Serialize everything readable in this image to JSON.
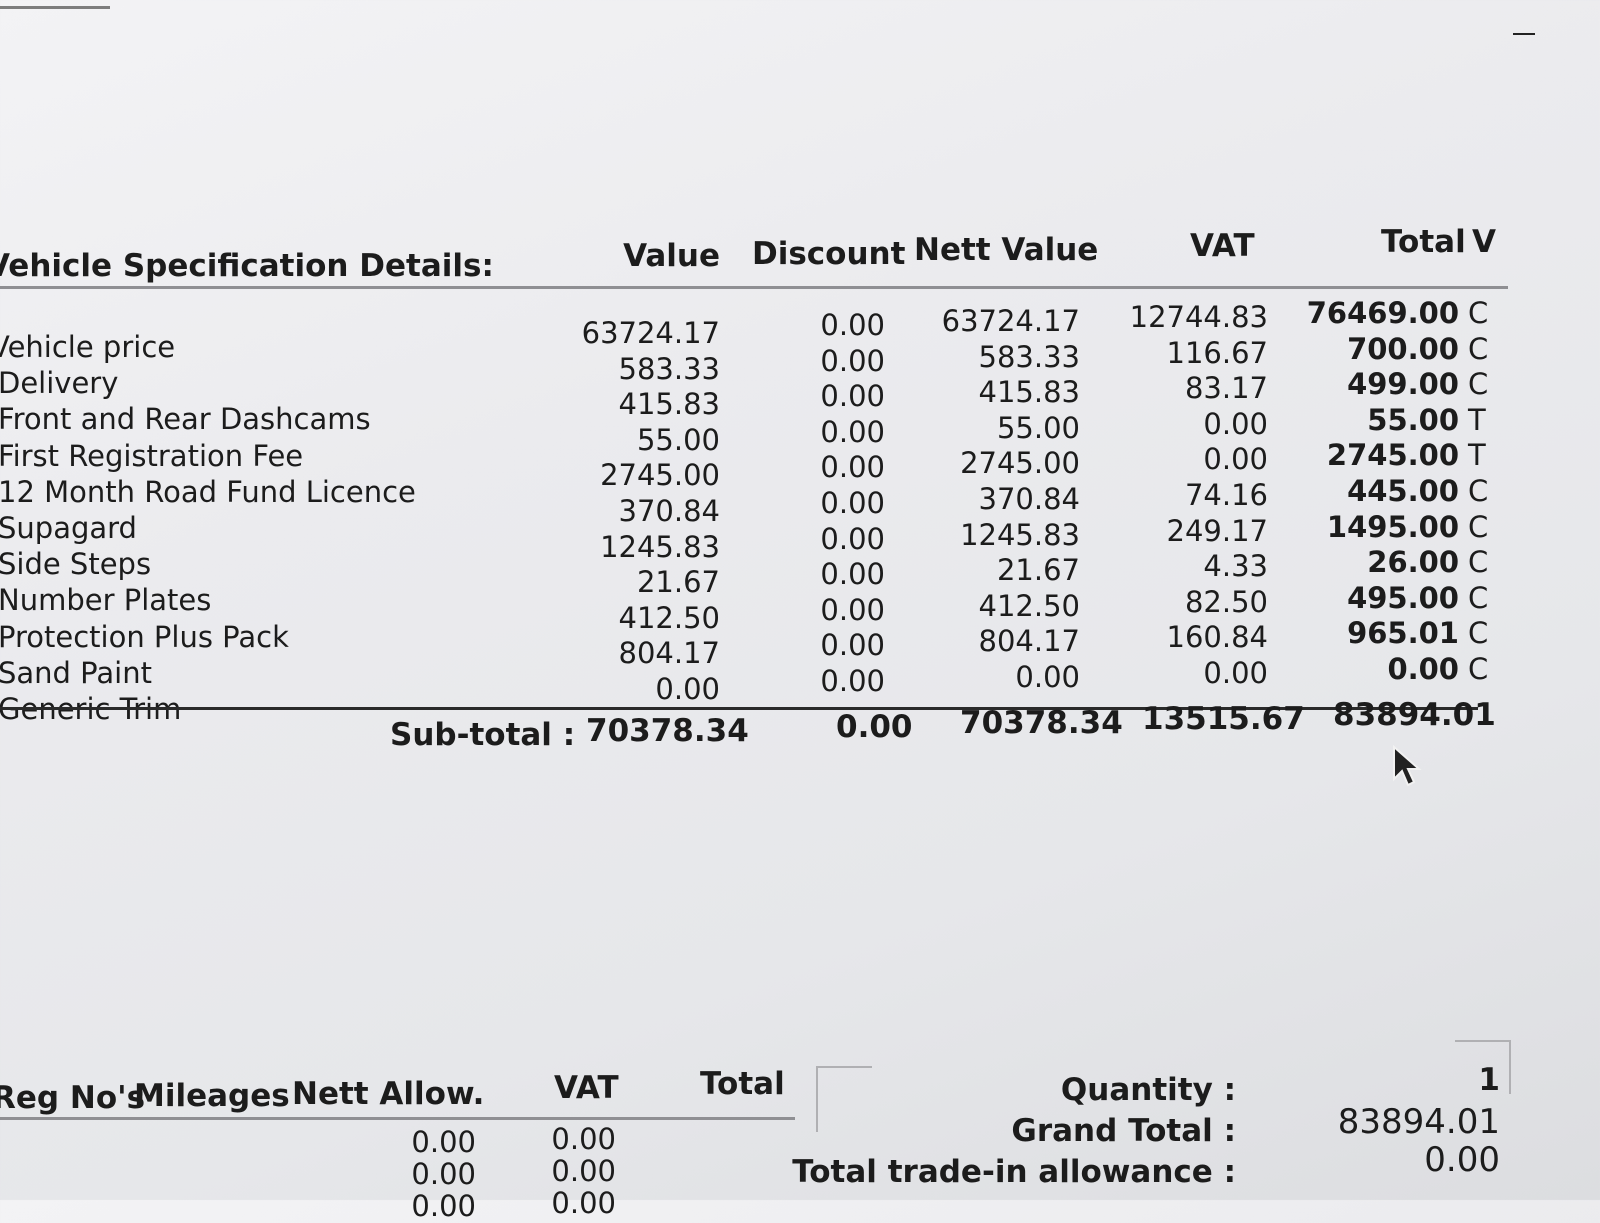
{
  "spec": {
    "title": "Vehicle Specification Details:",
    "headers": {
      "value": "Value",
      "discount": "Discount",
      "nett": "Nett Value",
      "vat": "VAT",
      "total": "Total",
      "code": "V"
    },
    "rows": [
      {
        "desc": "Vehicle price",
        "value": "63724.17",
        "discount": "0.00",
        "nett": "63724.17",
        "vat": "12744.83",
        "total": "76469.00",
        "code": "C"
      },
      {
        "desc": "Delivery",
        "value": "583.33",
        "discount": "0.00",
        "nett": "583.33",
        "vat": "116.67",
        "total": "700.00",
        "code": "C"
      },
      {
        "desc": "Front and Rear Dashcams",
        "value": "415.83",
        "discount": "0.00",
        "nett": "415.83",
        "vat": "83.17",
        "total": "499.00",
        "code": "C"
      },
      {
        "desc": "First Registration Fee",
        "value": "55.00",
        "discount": "0.00",
        "nett": "55.00",
        "vat": "0.00",
        "total": "55.00",
        "code": "T"
      },
      {
        "desc": "12 Month Road Fund Licence",
        "value": "2745.00",
        "discount": "0.00",
        "nett": "2745.00",
        "vat": "0.00",
        "total": "2745.00",
        "code": "T"
      },
      {
        "desc": "Supagard",
        "value": "370.84",
        "discount": "0.00",
        "nett": "370.84",
        "vat": "74.16",
        "total": "445.00",
        "code": "C"
      },
      {
        "desc": "Side Steps",
        "value": "1245.83",
        "discount": "0.00",
        "nett": "1245.83",
        "vat": "249.17",
        "total": "1495.00",
        "code": "C"
      },
      {
        "desc": "Number Plates",
        "value": "21.67",
        "discount": "0.00",
        "nett": "21.67",
        "vat": "4.33",
        "total": "26.00",
        "code": "C"
      },
      {
        "desc": "Protection Plus Pack",
        "value": "412.50",
        "discount": "0.00",
        "nett": "412.50",
        "vat": "82.50",
        "total": "495.00",
        "code": "C"
      },
      {
        "desc": "Sand Paint",
        "value": "804.17",
        "discount": "0.00",
        "nett": "804.17",
        "vat": "160.84",
        "total": "965.01",
        "code": "C"
      },
      {
        "desc": "Generic Trim",
        "value": "0.00",
        "discount": "0.00",
        "nett": "0.00",
        "vat": "0.00",
        "total": "0.00",
        "code": "C"
      }
    ],
    "subtotal": {
      "label": "Sub-total :",
      "value": "70378.34",
      "discount": "0.00",
      "nett": "70378.34",
      "vat": "13515.67",
      "total": "83894.01"
    }
  },
  "tradein": {
    "headers": {
      "regno": "Reg No's",
      "mileage": "Mileages",
      "nett": "Nett Allow.",
      "vat": "VAT",
      "total": "Total"
    },
    "rows": [
      {
        "nett": "0.00",
        "vat": "0.00"
      },
      {
        "nett": "0.00",
        "vat": "0.00"
      },
      {
        "nett": "0.00",
        "vat": "0.00"
      }
    ]
  },
  "summary": {
    "quantity_label": "Quantity :",
    "quantity_value": "1",
    "grand_label": "Grand Total :",
    "grand_value": "83894.01",
    "tradein_label": "Total trade-in allowance :",
    "tradein_value": "0.00"
  }
}
